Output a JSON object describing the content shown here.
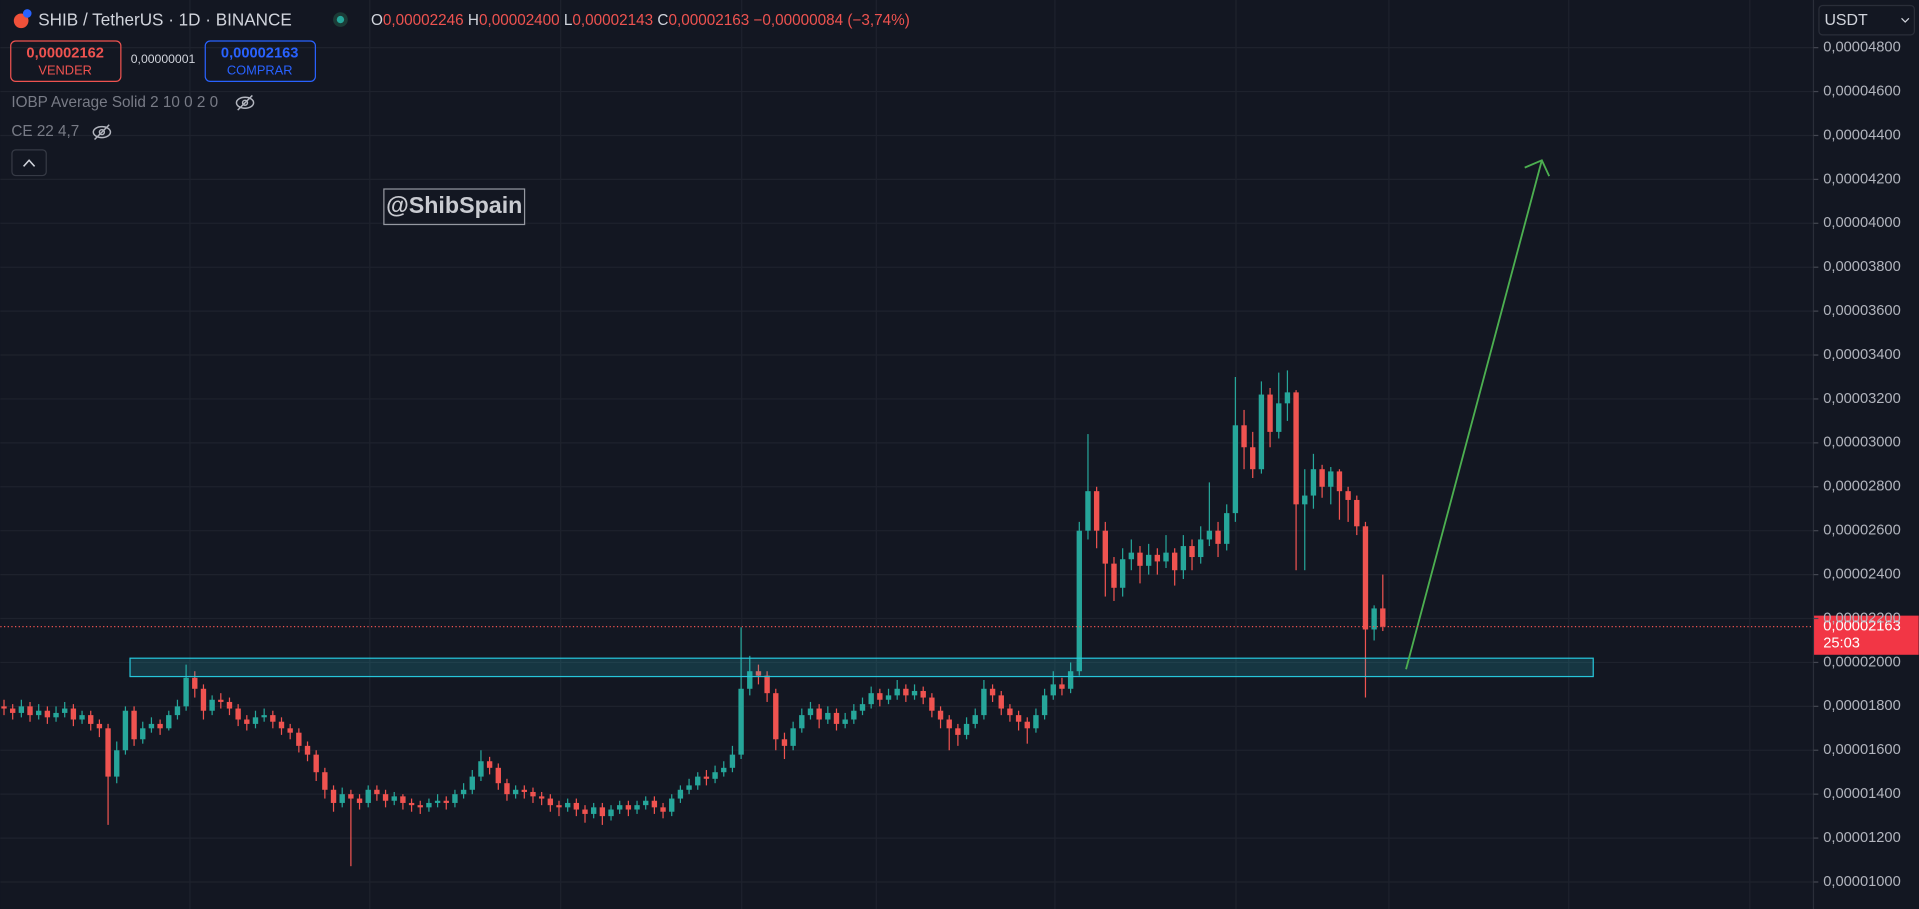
{
  "header": {
    "title": "SHIB / TetherUS · 1D · BINANCE",
    "ohlc": [
      {
        "label": "O",
        "value": "0,00002246"
      },
      {
        "label": "H",
        "value": "0,00002400"
      },
      {
        "label": "L",
        "value": "0,00002143"
      },
      {
        "label": "C",
        "value": "0,00002163"
      }
    ],
    "change": "−0,00000084 (−3,74%)",
    "sell": {
      "price": "0,00002162",
      "label": "VENDER"
    },
    "spread": "0,00000001",
    "buy": {
      "price": "0,00002163",
      "label": "COMPRAR"
    },
    "indicators": [
      "IOBP Average Solid 2 10 0 2 0",
      "CE 22 4,7"
    ],
    "currency": "USDT"
  },
  "watermark": "@ShibSpain",
  "price_tag": {
    "label": "0,00002163",
    "countdown": "25:03"
  },
  "chart_data": {
    "type": "candlestick",
    "up_color": "#26a69a",
    "down_color": "#ef5350",
    "grid": true,
    "ylim": [
      8.77e-06,
      5.017e-05
    ],
    "yticks": [
      {
        "value": 1e-05,
        "label": "0,00001000"
      },
      {
        "value": 1.2e-05,
        "label": "0,00001200"
      },
      {
        "value": 1.4e-05,
        "label": "0,00001400"
      },
      {
        "value": 1.6e-05,
        "label": "0,00001600"
      },
      {
        "value": 1.8e-05,
        "label": "0,00001800"
      },
      {
        "value": 2e-05,
        "label": "0,00002000"
      },
      {
        "value": 2.2e-05,
        "label": "0,00002200"
      },
      {
        "value": 2.4e-05,
        "label": "0,00002400"
      },
      {
        "value": 2.6e-05,
        "label": "0,00002600"
      },
      {
        "value": 2.8e-05,
        "label": "0,00002800"
      },
      {
        "value": 3e-05,
        "label": "0,00003000"
      },
      {
        "value": 3.2e-05,
        "label": "0,00003200"
      },
      {
        "value": 3.4e-05,
        "label": "0,00003400"
      },
      {
        "value": 3.6e-05,
        "label": "0,00003600"
      },
      {
        "value": 3.8e-05,
        "label": "0,00003800"
      },
      {
        "value": 4e-05,
        "label": "0,00004000"
      },
      {
        "value": 4.2e-05,
        "label": "0,00004200"
      },
      {
        "value": 4.4e-05,
        "label": "0,00004400"
      },
      {
        "value": 4.6e-05,
        "label": "0,00004600"
      },
      {
        "value": 4.8e-05,
        "label": "0,00004800"
      }
    ],
    "open": [
      1.8e-05,
      1.79e-05,
      1.77e-05,
      1.8e-05,
      1.76e-05,
      1.78e-05,
      1.75e-05,
      1.77e-05,
      1.79e-05,
      1.74e-05,
      1.76e-05,
      1.72e-05,
      1.7e-05,
      1.48e-05,
      1.6e-05,
      1.78e-05,
      1.65e-05,
      1.7e-05,
      1.72e-05,
      1.7e-05,
      1.76e-05,
      1.8e-05,
      1.93e-05,
      1.88e-05,
      1.78e-05,
      1.83e-05,
      1.82e-05,
      1.79e-05,
      1.74e-05,
      1.72e-05,
      1.75e-05,
      1.76e-05,
      1.73e-05,
      1.7e-05,
      1.68e-05,
      1.62e-05,
      1.58e-05,
      1.5e-05,
      1.42e-05,
      1.36e-05,
      1.4e-05,
      1.38e-05,
      1.36e-05,
      1.42e-05,
      1.4e-05,
      1.37e-05,
      1.39e-05,
      1.36e-05,
      1.35e-05,
      1.34e-05,
      1.36e-05,
      1.37e-05,
      1.36e-05,
      1.4e-05,
      1.42e-05,
      1.48e-05,
      1.55e-05,
      1.52e-05,
      1.45e-05,
      1.4e-05,
      1.42e-05,
      1.41e-05,
      1.39e-05,
      1.38e-05,
      1.35e-05,
      1.34e-05,
      1.36e-05,
      1.33e-05,
      1.31e-05,
      1.34e-05,
      1.3e-05,
      1.33e-05,
      1.35e-05,
      1.33e-05,
      1.35e-05,
      1.37e-05,
      1.34e-05,
      1.32e-05,
      1.38e-05,
      1.42e-05,
      1.44e-05,
      1.48e-05,
      1.47e-05,
      1.5e-05,
      1.52e-05,
      1.58e-05,
      1.88e-05,
      1.96e-05,
      1.94e-05,
      1.86e-05,
      1.65e-05,
      1.62e-05,
      1.7e-05,
      1.76e-05,
      1.79e-05,
      1.74e-05,
      1.77e-05,
      1.72e-05,
      1.74e-05,
      1.78e-05,
      1.81e-05,
      1.86e-05,
      1.83e-05,
      1.85e-05,
      1.88e-05,
      1.85e-05,
      1.87e-05,
      1.84e-05,
      1.78e-05,
      1.74e-05,
      1.7e-05,
      1.67e-05,
      1.72e-05,
      1.76e-05,
      1.88e-05,
      1.85e-05,
      1.79e-05,
      1.76e-05,
      1.73e-05,
      1.7e-05,
      1.76e-05,
      1.85e-05,
      1.9e-05,
      1.88e-05,
      1.96e-05,
      2.6e-05,
      2.78e-05,
      2.6e-05,
      2.45e-05,
      2.34e-05,
      2.47e-05,
      2.5e-05,
      2.44e-05,
      2.49e-05,
      2.46e-05,
      2.5e-05,
      2.42e-05,
      2.53e-05,
      2.48e-05,
      2.56e-05,
      2.6e-05,
      2.54e-05,
      2.68e-05,
      3.08e-05,
      2.98e-05,
      2.88e-05,
      3.22e-05,
      3.05e-05,
      3.18e-05,
      3.23e-05,
      2.72e-05,
      2.76e-05,
      2.88e-05,
      2.8e-05,
      2.87e-05,
      2.78e-05,
      2.74e-05,
      2.62e-05,
      2.15e-05,
      2.246e-05
    ],
    "high": [
      1.83e-05,
      1.81e-05,
      1.83e-05,
      1.82e-05,
      1.81e-05,
      1.8e-05,
      1.8e-05,
      1.82e-05,
      1.81e-05,
      1.78e-05,
      1.78e-05,
      1.74e-05,
      1.72e-05,
      1.64e-05,
      1.8e-05,
      1.8e-05,
      1.73e-05,
      1.75e-05,
      1.74e-05,
      1.78e-05,
      1.83e-05,
      1.99e-05,
      1.96e-05,
      1.9e-05,
      1.85e-05,
      1.86e-05,
      1.84e-05,
      1.81e-05,
      1.76e-05,
      1.78e-05,
      1.79e-05,
      1.78e-05,
      1.75e-05,
      1.72e-05,
      1.7e-05,
      1.64e-05,
      1.6e-05,
      1.52e-05,
      1.44e-05,
      1.43e-05,
      1.42e-05,
      1.4e-05,
      1.44e-05,
      1.44e-05,
      1.42e-05,
      1.41e-05,
      1.4e-05,
      1.38e-05,
      1.37e-05,
      1.38e-05,
      1.4e-05,
      1.39e-05,
      1.42e-05,
      1.45e-05,
      1.51e-05,
      1.6e-05,
      1.57e-05,
      1.54e-05,
      1.47e-05,
      1.44e-05,
      1.44e-05,
      1.43e-05,
      1.41e-05,
      1.4e-05,
      1.37e-05,
      1.38e-05,
      1.38e-05,
      1.35e-05,
      1.36e-05,
      1.36e-05,
      1.35e-05,
      1.37e-05,
      1.37e-05,
      1.37e-05,
      1.39e-05,
      1.39e-05,
      1.36e-05,
      1.4e-05,
      1.44e-05,
      1.47e-05,
      1.5e-05,
      1.51e-05,
      1.53e-05,
      1.55e-05,
      1.62e-05,
      2.16e-05,
      2.03e-05,
      1.99e-05,
      1.96e-05,
      1.88e-05,
      1.68e-05,
      1.73e-05,
      1.79e-05,
      1.82e-05,
      1.81e-05,
      1.8e-05,
      1.79e-05,
      1.77e-05,
      1.81e-05,
      1.84e-05,
      1.89e-05,
      1.88e-05,
      1.88e-05,
      1.92e-05,
      1.9e-05,
      1.9e-05,
      1.89e-05,
      1.86e-05,
      1.8e-05,
      1.76e-05,
      1.72e-05,
      1.75e-05,
      1.79e-05,
      1.92e-05,
      1.9e-05,
      1.87e-05,
      1.81e-05,
      1.78e-05,
      1.75e-05,
      1.79e-05,
      1.88e-05,
      1.96e-05,
      1.93e-05,
      2e-05,
      2.64e-05,
      3.04e-05,
      2.8e-05,
      2.64e-05,
      2.48e-05,
      2.52e-05,
      2.56e-05,
      2.53e-05,
      2.54e-05,
      2.52e-05,
      2.58e-05,
      2.52e-05,
      2.58e-05,
      2.56e-05,
      2.62e-05,
      2.82e-05,
      2.64e-05,
      2.72e-05,
      3.3e-05,
      3.15e-05,
      3.05e-05,
      3.28e-05,
      3.25e-05,
      3.32e-05,
      3.33e-05,
      3.24e-05,
      2.88e-05,
      2.95e-05,
      2.9e-05,
      2.89e-05,
      2.88e-05,
      2.8e-05,
      2.76e-05,
      2.64e-05,
      2.26e-05,
      2.4e-05
    ],
    "low": [
      1.76e-05,
      1.74e-05,
      1.75e-05,
      1.73e-05,
      1.74e-05,
      1.72e-05,
      1.73e-05,
      1.75e-05,
      1.71e-05,
      1.72e-05,
      1.69e-05,
      1.66e-05,
      1.26e-05,
      1.45e-05,
      1.58e-05,
      1.62e-05,
      1.63e-05,
      1.68e-05,
      1.67e-05,
      1.69e-05,
      1.74e-05,
      1.78e-05,
      1.84e-05,
      1.74e-05,
      1.76e-05,
      1.79e-05,
      1.76e-05,
      1.71e-05,
      1.69e-05,
      1.7e-05,
      1.73e-05,
      1.7e-05,
      1.67e-05,
      1.65e-05,
      1.59e-05,
      1.55e-05,
      1.46e-05,
      1.38e-05,
      1.32e-05,
      1.34e-05,
      1.072e-05,
      1.33e-05,
      1.34e-05,
      1.37e-05,
      1.34e-05,
      1.35e-05,
      1.33e-05,
      1.32e-05,
      1.31e-05,
      1.32e-05,
      1.34e-05,
      1.33e-05,
      1.34e-05,
      1.38e-05,
      1.4e-05,
      1.46e-05,
      1.49e-05,
      1.42e-05,
      1.37e-05,
      1.38e-05,
      1.38e-05,
      1.36e-05,
      1.35e-05,
      1.32e-05,
      1.3e-05,
      1.32e-05,
      1.3e-05,
      1.27e-05,
      1.29e-05,
      1.26e-05,
      1.28e-05,
      1.31e-05,
      1.3e-05,
      1.31e-05,
      1.33e-05,
      1.31e-05,
      1.29e-05,
      1.3e-05,
      1.36e-05,
      1.4e-05,
      1.42e-05,
      1.44e-05,
      1.45e-05,
      1.48e-05,
      1.5e-05,
      1.56e-05,
      1.85e-05,
      1.9e-05,
      1.82e-05,
      1.6e-05,
      1.56e-05,
      1.6e-05,
      1.68e-05,
      1.74e-05,
      1.7e-05,
      1.72e-05,
      1.69e-05,
      1.7e-05,
      1.72e-05,
      1.76e-05,
      1.79e-05,
      1.8e-05,
      1.81e-05,
      1.83e-05,
      1.82e-05,
      1.83e-05,
      1.81e-05,
      1.75e-05,
      1.7e-05,
      1.6e-05,
      1.62e-05,
      1.65e-05,
      1.7e-05,
      1.74e-05,
      1.82e-05,
      1.76e-05,
      1.73e-05,
      1.69e-05,
      1.63e-05,
      1.68e-05,
      1.74e-05,
      1.83e-05,
      1.85e-05,
      1.86e-05,
      1.94e-05,
      2.56e-05,
      2.52e-05,
      2.3e-05,
      2.28e-05,
      2.3e-05,
      2.42e-05,
      2.36e-05,
      2.4e-05,
      2.4e-05,
      2.43e-05,
      2.35e-05,
      2.38e-05,
      2.42e-05,
      2.45e-05,
      2.53e-05,
      2.48e-05,
      2.51e-05,
      2.64e-05,
      2.88e-05,
      2.84e-05,
      2.86e-05,
      2.98e-05,
      3.02e-05,
      3.1e-05,
      2.42e-05,
      2.42e-05,
      2.7e-05,
      2.75e-05,
      2.72e-05,
      2.65e-05,
      2.64e-05,
      2.58e-05,
      1.84e-05,
      2.1e-05,
      2.143e-05
    ],
    "close": [
      1.79e-05,
      1.77e-05,
      1.8e-05,
      1.76e-05,
      1.78e-05,
      1.75e-05,
      1.77e-05,
      1.79e-05,
      1.74e-05,
      1.76e-05,
      1.72e-05,
      1.7e-05,
      1.48e-05,
      1.6e-05,
      1.78e-05,
      1.65e-05,
      1.7e-05,
      1.72e-05,
      1.7e-05,
      1.76e-05,
      1.8e-05,
      1.93e-05,
      1.88e-05,
      1.78e-05,
      1.83e-05,
      1.82e-05,
      1.79e-05,
      1.74e-05,
      1.72e-05,
      1.75e-05,
      1.76e-05,
      1.73e-05,
      1.7e-05,
      1.68e-05,
      1.62e-05,
      1.58e-05,
      1.5e-05,
      1.42e-05,
      1.36e-05,
      1.4e-05,
      1.38e-05,
      1.36e-05,
      1.42e-05,
      1.4e-05,
      1.37e-05,
      1.39e-05,
      1.36e-05,
      1.35e-05,
      1.34e-05,
      1.36e-05,
      1.37e-05,
      1.36e-05,
      1.4e-05,
      1.42e-05,
      1.48e-05,
      1.55e-05,
      1.52e-05,
      1.45e-05,
      1.4e-05,
      1.42e-05,
      1.41e-05,
      1.39e-05,
      1.38e-05,
      1.35e-05,
      1.34e-05,
      1.36e-05,
      1.33e-05,
      1.31e-05,
      1.34e-05,
      1.3e-05,
      1.33e-05,
      1.35e-05,
      1.33e-05,
      1.35e-05,
      1.37e-05,
      1.34e-05,
      1.32e-05,
      1.38e-05,
      1.42e-05,
      1.44e-05,
      1.48e-05,
      1.47e-05,
      1.5e-05,
      1.52e-05,
      1.58e-05,
      1.88e-05,
      1.96e-05,
      1.94e-05,
      1.86e-05,
      1.65e-05,
      1.62e-05,
      1.7e-05,
      1.76e-05,
      1.79e-05,
      1.74e-05,
      1.77e-05,
      1.72e-05,
      1.74e-05,
      1.78e-05,
      1.81e-05,
      1.86e-05,
      1.83e-05,
      1.85e-05,
      1.88e-05,
      1.85e-05,
      1.87e-05,
      1.84e-05,
      1.78e-05,
      1.74e-05,
      1.7e-05,
      1.67e-05,
      1.72e-05,
      1.76e-05,
      1.88e-05,
      1.85e-05,
      1.79e-05,
      1.76e-05,
      1.73e-05,
      1.7e-05,
      1.76e-05,
      1.85e-05,
      1.9e-05,
      1.88e-05,
      1.96e-05,
      2.6e-05,
      2.78e-05,
      2.6e-05,
      2.45e-05,
      2.34e-05,
      2.47e-05,
      2.5e-05,
      2.44e-05,
      2.49e-05,
      2.46e-05,
      2.5e-05,
      2.42e-05,
      2.53e-05,
      2.48e-05,
      2.56e-05,
      2.6e-05,
      2.54e-05,
      2.68e-05,
      3.08e-05,
      2.98e-05,
      2.88e-05,
      3.22e-05,
      3.05e-05,
      3.18e-05,
      3.23e-05,
      2.72e-05,
      2.76e-05,
      2.88e-05,
      2.8e-05,
      2.87e-05,
      2.78e-05,
      2.74e-05,
      2.62e-05,
      2.15e-05,
      2.246e-05,
      2.163e-05
    ]
  }
}
